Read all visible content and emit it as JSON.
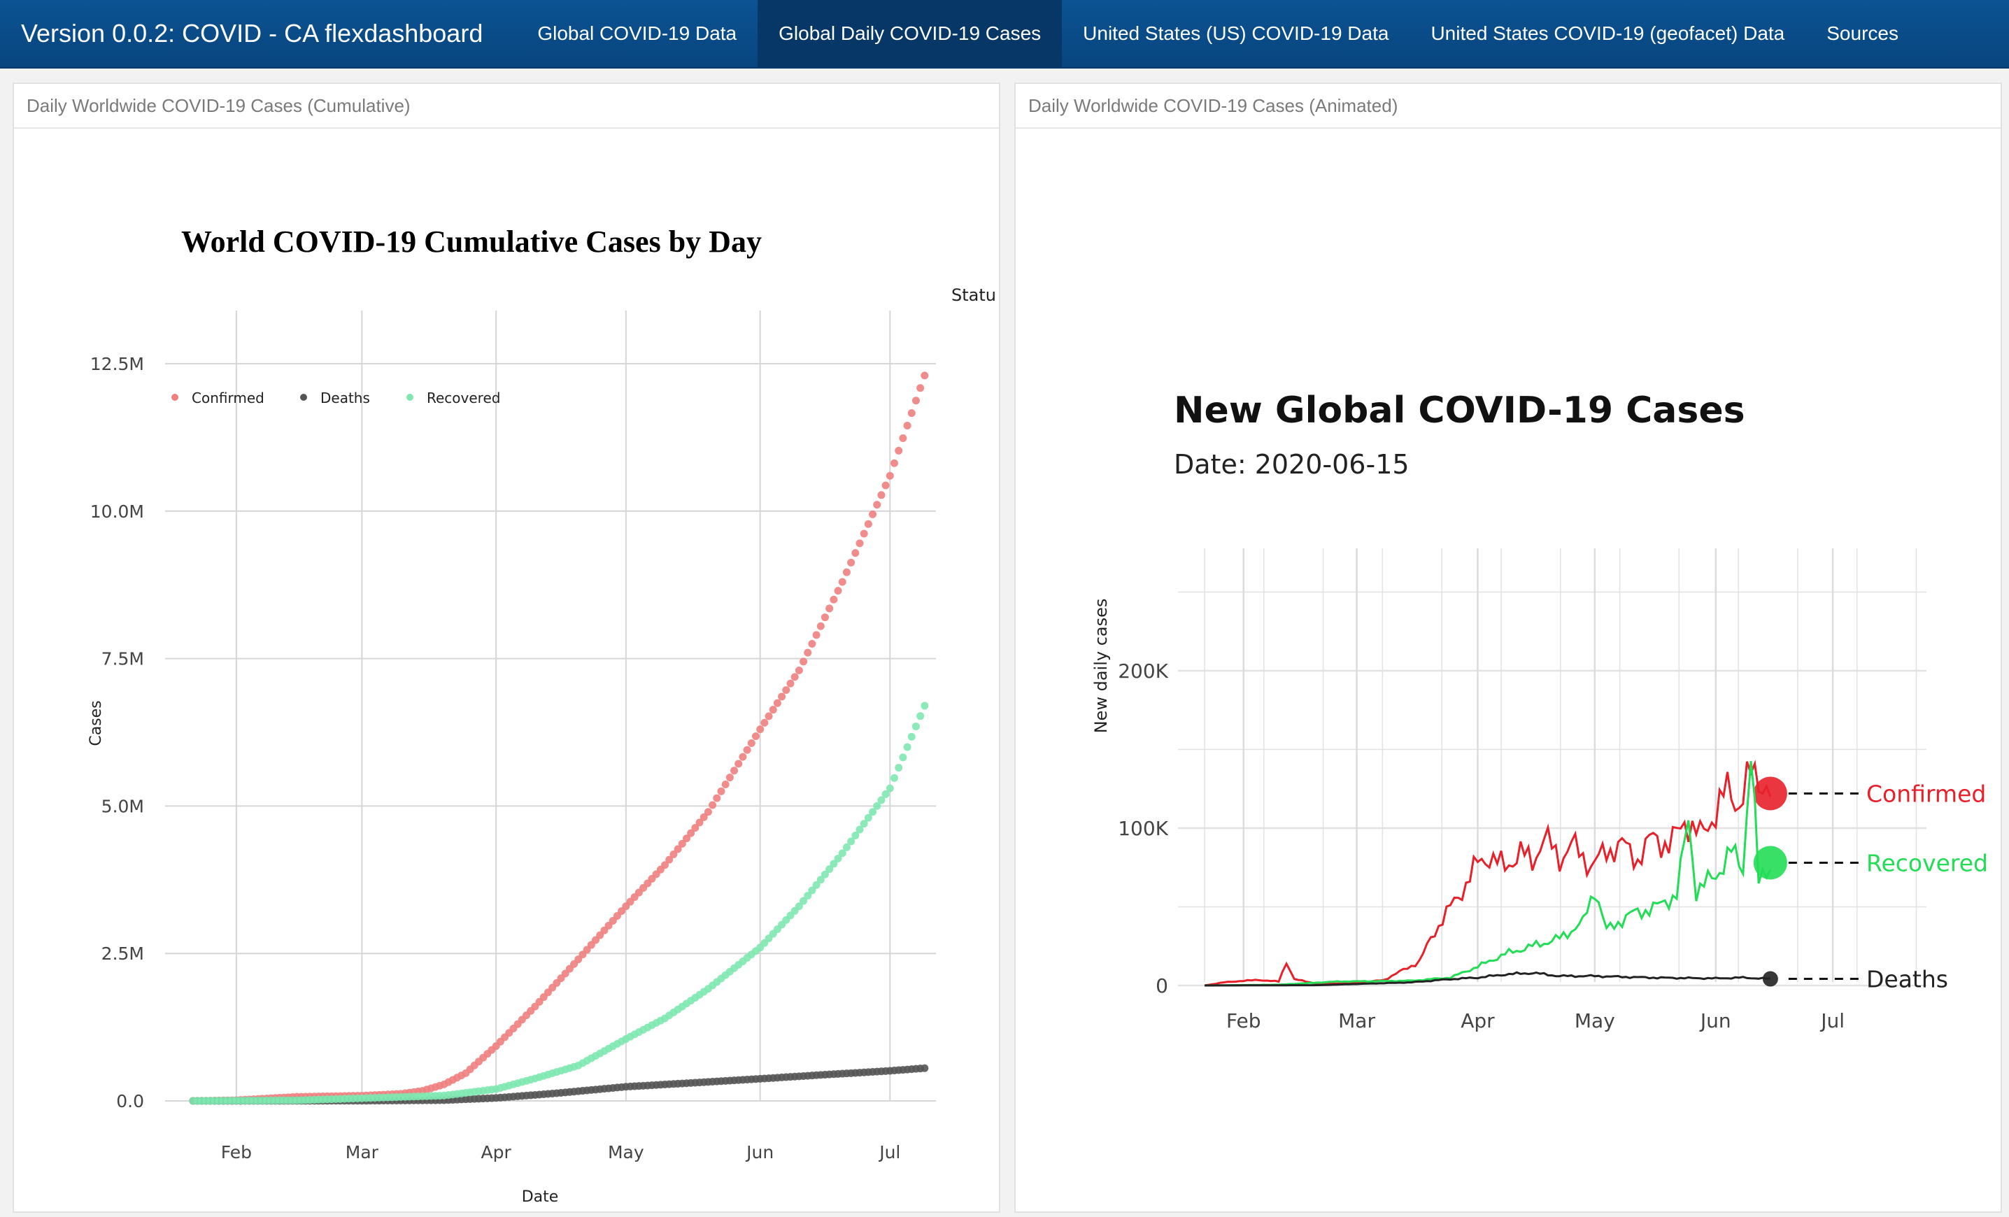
{
  "navbar": {
    "brand": "Version 0.0.2: COVID - CA flexdashboard",
    "tabs": [
      {
        "label": "Global COVID-19 Data"
      },
      {
        "label": "Global Daily COVID-19 Cases",
        "active": true
      },
      {
        "label": "United States (US) COVID-19 Data"
      },
      {
        "label": "United States COVID-19 (geofacet) Data"
      },
      {
        "label": "Sources"
      }
    ]
  },
  "panels": {
    "left": {
      "title": "Daily Worldwide COVID-19 Cases (Cumulative)"
    },
    "right": {
      "title": "Daily Worldwide COVID-19 Cases (Animated)"
    }
  },
  "colors": {
    "confirmed": "#f08080",
    "deaths": "#555555",
    "recovered": "#7ee8b0",
    "confirmed_line": "#e8202a",
    "recovered_line": "#22dd55",
    "deaths_line": "#222222"
  },
  "chart_data": [
    {
      "type": "scatter",
      "title": "World COVID-19 Cumulative Cases by Day",
      "xlabel": "Date",
      "ylabel": "Cases",
      "legend_title": "Statu",
      "legend_position": "top-left",
      "grid": true,
      "xlim": [
        "2020-01-22",
        "2020-07-10"
      ],
      "x_ticks": [
        "Feb",
        "Mar",
        "Apr",
        "May",
        "Jun",
        "Jul"
      ],
      "x_tick_dates": [
        "2020-02-01",
        "2020-03-01",
        "2020-04-01",
        "2020-05-01",
        "2020-06-01",
        "2020-07-01"
      ],
      "ylim": [
        0,
        12500000
      ],
      "y_ticks": [
        0,
        2500000,
        5000000,
        7500000,
        10000000,
        12500000
      ],
      "y_tick_labels": [
        "0.0",
        "2.5M",
        "5.0M",
        "7.5M",
        "10.0M",
        "12.5M"
      ],
      "series": [
        {
          "name": "Confirmed",
          "color": "#f08080",
          "points": [
            [
              "2020-01-22",
              0
            ],
            [
              "2020-02-01",
              12000
            ],
            [
              "2020-02-15",
              69000
            ],
            [
              "2020-03-01",
              88000
            ],
            [
              "2020-03-10",
              120000
            ],
            [
              "2020-03-15",
              170000
            ],
            [
              "2020-03-20",
              280000
            ],
            [
              "2020-03-25",
              470000
            ],
            [
              "2020-04-01",
              930000
            ],
            [
              "2020-04-10",
              1600000
            ],
            [
              "2020-04-20",
              2400000
            ],
            [
              "2020-05-01",
              3300000
            ],
            [
              "2020-05-10",
              4000000
            ],
            [
              "2020-05-20",
              4900000
            ],
            [
              "2020-06-01",
              6300000
            ],
            [
              "2020-06-10",
              7300000
            ],
            [
              "2020-06-20",
              8800000
            ],
            [
              "2020-07-01",
              10600000
            ],
            [
              "2020-07-09",
              12300000
            ]
          ]
        },
        {
          "name": "Deaths",
          "color": "#555555",
          "points": [
            [
              "2020-01-22",
              0
            ],
            [
              "2020-03-01",
              3000
            ],
            [
              "2020-03-20",
              12000
            ],
            [
              "2020-04-01",
              50000
            ],
            [
              "2020-04-15",
              130000
            ],
            [
              "2020-05-01",
              240000
            ],
            [
              "2020-05-15",
              300000
            ],
            [
              "2020-06-01",
              375000
            ],
            [
              "2020-06-15",
              440000
            ],
            [
              "2020-07-01",
              510000
            ],
            [
              "2020-07-09",
              555000
            ]
          ]
        },
        {
          "name": "Recovered",
          "color": "#7ee8b0",
          "points": [
            [
              "2020-01-22",
              0
            ],
            [
              "2020-02-15",
              10000
            ],
            [
              "2020-03-01",
              45000
            ],
            [
              "2020-03-20",
              90000
            ],
            [
              "2020-04-01",
              200000
            ],
            [
              "2020-04-10",
              380000
            ],
            [
              "2020-04-20",
              600000
            ],
            [
              "2020-05-01",
              1050000
            ],
            [
              "2020-05-10",
              1400000
            ],
            [
              "2020-05-20",
              1900000
            ],
            [
              "2020-06-01",
              2600000
            ],
            [
              "2020-06-10",
              3300000
            ],
            [
              "2020-06-20",
              4200000
            ],
            [
              "2020-07-01",
              5300000
            ],
            [
              "2020-07-09",
              6700000
            ]
          ]
        }
      ]
    },
    {
      "type": "line",
      "title": "New Global COVID-19 Cases",
      "subtitle": "Date: 2020-06-15",
      "xlabel": "",
      "ylabel": "New daily cases",
      "grid": true,
      "xlim": [
        "2020-01-22",
        "2020-07-25"
      ],
      "x_ticks": [
        "Feb",
        "Mar",
        "Apr",
        "May",
        "Jun",
        "Jul"
      ],
      "x_tick_dates": [
        "2020-02-01",
        "2020-03-01",
        "2020-04-01",
        "2020-05-01",
        "2020-06-01",
        "2020-07-01"
      ],
      "ylim": [
        0,
        300000
      ],
      "y_ticks": [
        0,
        100000,
        200000
      ],
      "y_tick_labels": [
        "0",
        "100K",
        "200K"
      ],
      "series": [
        {
          "name": "Confirmed",
          "color": "#e8202a",
          "points": [
            [
              "2020-01-22",
              0
            ],
            [
              "2020-01-27",
              2000
            ],
            [
              "2020-02-01",
              3000
            ],
            [
              "2020-02-05",
              3500
            ],
            [
              "2020-02-10",
              2500
            ],
            [
              "2020-02-12",
              15000
            ],
            [
              "2020-02-14",
              4000
            ],
            [
              "2020-02-20",
              1000
            ],
            [
              "2020-03-01",
              1500
            ],
            [
              "2020-03-08",
              3500
            ],
            [
              "2020-03-13",
              10000
            ],
            [
              "2020-03-17",
              15000
            ],
            [
              "2020-03-20",
              30000
            ],
            [
              "2020-03-25",
              50000
            ],
            [
              "2020-03-28",
              60000
            ],
            [
              "2020-04-01",
              78000
            ],
            [
              "2020-04-04",
              82000
            ],
            [
              "2020-04-08",
              75000
            ],
            [
              "2020-04-12",
              85000
            ],
            [
              "2020-04-15",
              78000
            ],
            [
              "2020-04-18",
              95000
            ],
            [
              "2020-04-22",
              80000
            ],
            [
              "2020-04-25",
              90000
            ],
            [
              "2020-04-30",
              76000
            ],
            [
              "2020-05-04",
              85000
            ],
            [
              "2020-05-08",
              90000
            ],
            [
              "2020-05-12",
              80000
            ],
            [
              "2020-05-16",
              95000
            ],
            [
              "2020-05-20",
              88000
            ],
            [
              "2020-05-24",
              105000
            ],
            [
              "2020-05-28",
              95000
            ],
            [
              "2020-06-01",
              110000
            ],
            [
              "2020-06-04",
              125000
            ],
            [
              "2020-06-07",
              115000
            ],
            [
              "2020-06-10",
              135000
            ],
            [
              "2020-06-13",
              130000
            ],
            [
              "2020-06-15",
              122000
            ]
          ]
        },
        {
          "name": "Recovered",
          "color": "#22dd55",
          "points": [
            [
              "2020-01-22",
              0
            ],
            [
              "2020-02-10",
              500
            ],
            [
              "2020-02-25",
              2500
            ],
            [
              "2020-03-15",
              3000
            ],
            [
              "2020-03-25",
              5000
            ],
            [
              "2020-04-01",
              12000
            ],
            [
              "2020-04-08",
              20000
            ],
            [
              "2020-04-15",
              25000
            ],
            [
              "2020-04-22",
              30000
            ],
            [
              "2020-04-28",
              40000
            ],
            [
              "2020-05-01",
              62000
            ],
            [
              "2020-05-04",
              35000
            ],
            [
              "2020-05-10",
              45000
            ],
            [
              "2020-05-17",
              50000
            ],
            [
              "2020-05-22",
              58000
            ],
            [
              "2020-05-25",
              105000
            ],
            [
              "2020-05-27",
              60000
            ],
            [
              "2020-06-01",
              70000
            ],
            [
              "2020-06-05",
              85000
            ],
            [
              "2020-06-08",
              75000
            ],
            [
              "2020-06-10",
              150000
            ],
            [
              "2020-06-12",
              65000
            ],
            [
              "2020-06-15",
              78000
            ]
          ]
        },
        {
          "name": "Deaths",
          "color": "#222222",
          "points": [
            [
              "2020-01-22",
              0
            ],
            [
              "2020-02-20",
              200
            ],
            [
              "2020-03-15",
              2000
            ],
            [
              "2020-03-25",
              4000
            ],
            [
              "2020-04-01",
              5000
            ],
            [
              "2020-04-08",
              7000
            ],
            [
              "2020-04-15",
              8000
            ],
            [
              "2020-04-22",
              6000
            ],
            [
              "2020-05-01",
              6000
            ],
            [
              "2020-05-15",
              5000
            ],
            [
              "2020-06-01",
              4500
            ],
            [
              "2020-06-08",
              5000
            ],
            [
              "2020-06-15",
              4200
            ]
          ]
        }
      ]
    }
  ]
}
